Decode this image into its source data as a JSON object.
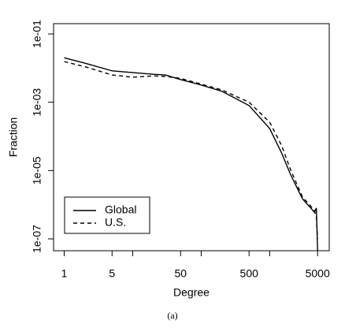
{
  "chart_data": {
    "type": "line",
    "caption": "(a)",
    "xlabel": "Degree",
    "ylabel": "Fraction",
    "xscale": "log",
    "yscale": "log",
    "xlim": [
      0.7,
      7400
    ],
    "ylim": [
      4.5e-08,
      0.2
    ],
    "xticks": [
      1,
      5,
      50,
      500,
      5000
    ],
    "xminor_ticks": [
      10,
      100,
      1000
    ],
    "yticks": [
      {
        "value": 0.1,
        "label": "1e-01"
      },
      {
        "value": 0.001,
        "label": "1e-03"
      },
      {
        "value": 1e-05,
        "label": "1e-05"
      },
      {
        "value": 1e-07,
        "label": "1e-07"
      }
    ],
    "x": [
      1,
      2,
      5,
      10,
      20,
      30,
      50,
      100,
      200,
      500,
      1000,
      1500,
      2000,
      3000,
      4000,
      4500,
      4800,
      5000
    ],
    "series": [
      {
        "name": "Global",
        "color": "#000000",
        "linestyle": "solid",
        "values": [
          0.02,
          0.014,
          0.0083,
          0.0074,
          0.0066,
          0.0063,
          0.0046,
          0.0032,
          0.0021,
          0.0008,
          0.00017,
          3.2e-05,
          7.9e-06,
          1.5e-06,
          7.9e-07,
          6e-07,
          8e-07,
          4.6e-08
        ]
      },
      {
        "name": "U.S.",
        "color": "#000000",
        "linestyle": "dashed",
        "values": [
          0.0155,
          0.011,
          0.0063,
          0.0054,
          0.0059,
          0.0057,
          0.005,
          0.0034,
          0.0023,
          0.001,
          0.00026,
          5.3e-05,
          1.1e-05,
          1.7e-06,
          9e-07,
          6.6e-07,
          4.5e-07,
          1e-07
        ]
      }
    ],
    "legend": "bottom-left"
  }
}
